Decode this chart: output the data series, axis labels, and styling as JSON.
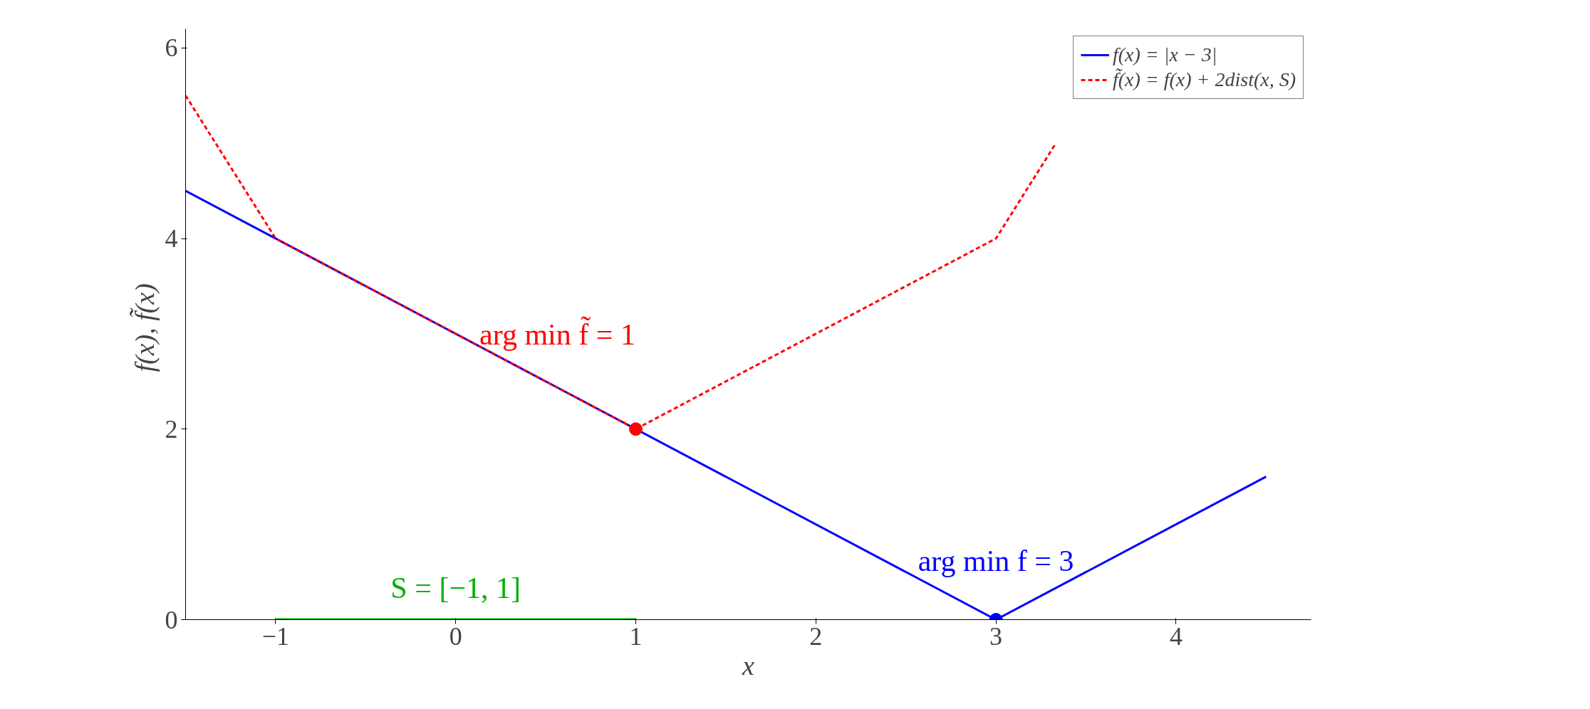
{
  "chart_data": {
    "type": "line",
    "xlabel": "x",
    "ylabel": "f(x),  f̃(x)",
    "xlim": [
      -1.5,
      4.75
    ],
    "ylim": [
      0,
      6.2
    ],
    "xticks": [
      {
        "value": -1,
        "label": "−1"
      },
      0,
      1,
      2,
      3,
      4
    ],
    "yticks": [
      0,
      2,
      4,
      6
    ],
    "grid": false,
    "legend": "top right",
    "series": [
      {
        "name": "f(x) = |x − 3|",
        "color": "#0000ff",
        "x": [
          -1.5,
          3,
          4.5
        ],
        "values": [
          4.5,
          0,
          1.5
        ],
        "line_style": "solid"
      },
      {
        "name": "f̃(x) = f(x) + 2dist(x, S)",
        "color": "#ff0000",
        "x": [
          -1.5,
          -1,
          1,
          3,
          3.333
        ],
        "values": [
          5.5,
          4,
          2,
          4,
          5
        ],
        "line_style": "dashed"
      },
      {
        "color": "#00b000",
        "x": [
          -1,
          1
        ],
        "values": [
          0,
          0
        ],
        "line_style": "solid"
      },
      {
        "type": "scatter",
        "color": "#ff0000",
        "x": [
          1
        ],
        "values": [
          2
        ],
        "marker": "circle"
      },
      {
        "type": "scatter",
        "color": "#0000ff",
        "x": [
          3
        ],
        "values": [
          0
        ],
        "marker": "circle"
      }
    ],
    "annotations": [
      {
        "text": "arg min f̃ = 1",
        "x": 1,
        "y": 2
      },
      {
        "text": "arg min f = 3",
        "x": 3,
        "y": 0
      },
      {
        "text": "S = [−1, 1]",
        "x": 0,
        "y": 0
      }
    ]
  }
}
